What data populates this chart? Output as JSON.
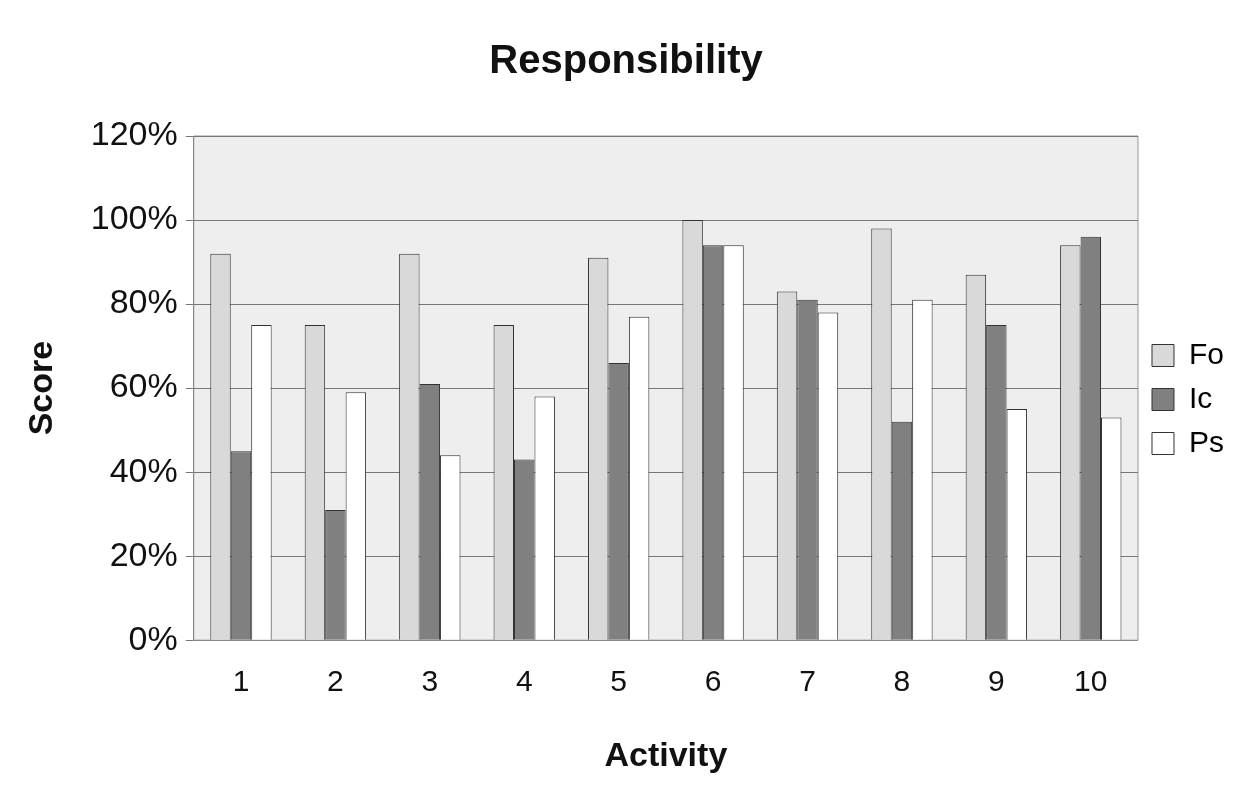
{
  "chart_data": {
    "type": "bar",
    "title": "Responsibility",
    "xlabel": "Activity",
    "ylabel": "Score",
    "categories": [
      "1",
      "2",
      "3",
      "4",
      "5",
      "6",
      "7",
      "8",
      "9",
      "10"
    ],
    "series": [
      {
        "name": "Fo",
        "color": "#d9d9d9",
        "values": [
          92,
          75,
          92,
          75,
          91,
          100,
          83,
          98,
          87,
          94
        ]
      },
      {
        "name": "Ic",
        "color": "#808080",
        "values": [
          45,
          31,
          61,
          43,
          66,
          94,
          81,
          52,
          75,
          96
        ]
      },
      {
        "name": "Ps",
        "color": "#ffffff",
        "values": [
          75,
          59,
          44,
          58,
          77,
          94,
          78,
          81,
          55,
          53
        ]
      }
    ],
    "ylim": [
      0,
      120
    ],
    "yticks": [
      {
        "value": 0,
        "label": "0%"
      },
      {
        "value": 20,
        "label": "20%"
      },
      {
        "value": 40,
        "label": "40%"
      },
      {
        "value": 60,
        "label": "60%"
      },
      {
        "value": 80,
        "label": "80%"
      },
      {
        "value": 100,
        "label": "100%"
      },
      {
        "value": 120,
        "label": "120%"
      }
    ],
    "grid": "y",
    "legend": "right"
  }
}
